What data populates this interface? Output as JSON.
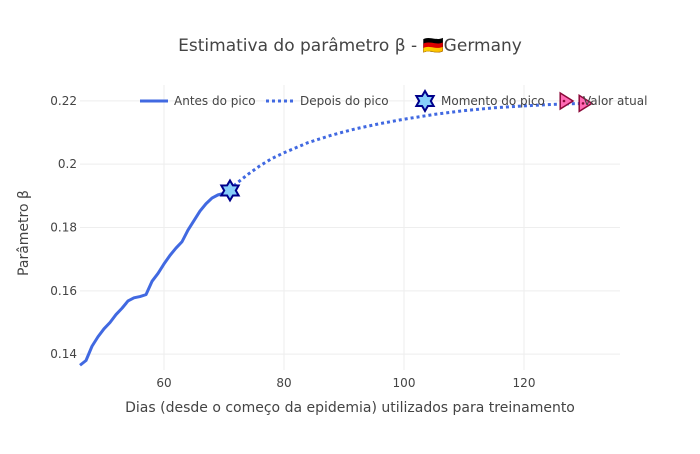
{
  "chart_data": {
    "type": "line",
    "title": "Estimativa do parâmetro β - 🇩🇪Germany",
    "xlabel": "Dias (desde o começo da epidemia) utilizados para treinamento",
    "ylabel": "Parâmetro β",
    "xlim": [
      46,
      136
    ],
    "ylim": [
      0.135,
      0.225
    ],
    "xticks": [
      60,
      80,
      100,
      120
    ],
    "yticks": [
      0.14,
      0.16,
      0.18,
      0.2,
      0.22
    ],
    "ytick_labels": [
      "0.14",
      "0.16",
      "0.18",
      "0.2",
      "0.22"
    ],
    "grid": true,
    "legend_position": "top",
    "colors": {
      "line": "#4169e1",
      "peak_fill": "#87cefa",
      "peak_edge": "#00008b",
      "current_fill": "#ff69b4",
      "current_edge": "#8b0a3a"
    },
    "series": [
      {
        "name": "Antes do pico",
        "style": "solid",
        "x": [
          46,
          47,
          48,
          49,
          50,
          51,
          52,
          53,
          54,
          55,
          56,
          57,
          58,
          59,
          60,
          61,
          62,
          63,
          64,
          65,
          66,
          67,
          68,
          69,
          70,
          71
        ],
        "y": [
          0.1365,
          0.138,
          0.1425,
          0.1455,
          0.148,
          0.15,
          0.1525,
          0.1545,
          0.1568,
          0.1578,
          0.1582,
          0.1588,
          0.163,
          0.1655,
          0.1685,
          0.1712,
          0.1735,
          0.1755,
          0.1792,
          0.1822,
          0.1852,
          0.1875,
          0.1893,
          0.1903,
          0.1908,
          0.1917
        ]
      },
      {
        "name": "Depois do pico",
        "style": "dotted",
        "x": [
          71,
          72,
          74,
          76,
          78,
          80,
          84,
          88,
          92,
          96,
          100,
          105,
          110,
          115,
          120,
          125,
          130
        ],
        "y": [
          0.1917,
          0.1938,
          0.1968,
          0.1995,
          0.2018,
          0.2036,
          0.2068,
          0.2092,
          0.2112,
          0.2128,
          0.2142,
          0.2157,
          0.2169,
          0.2178,
          0.2184,
          0.2189,
          0.2192
        ]
      },
      {
        "name": "Momento do pico",
        "marker": "star",
        "x": [
          71
        ],
        "y": [
          0.1917
        ]
      },
      {
        "name": "Valor atual",
        "marker": "triangle-right",
        "x": [
          130
        ],
        "y": [
          0.2192
        ]
      }
    ]
  }
}
